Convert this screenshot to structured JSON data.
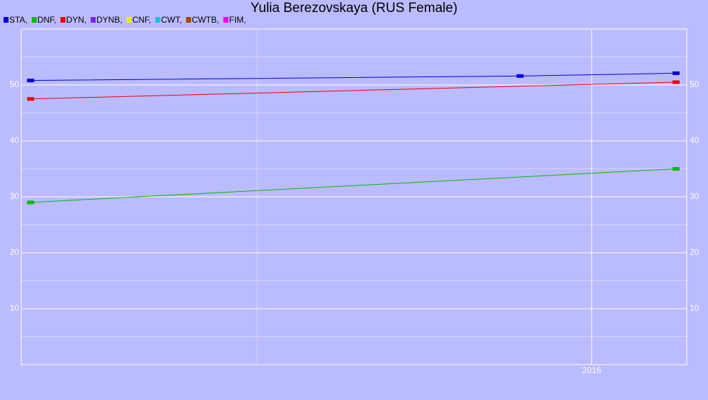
{
  "chart_data": {
    "type": "line",
    "title": "Yulia Berezovskaya (RUS Female)",
    "ylim": [
      0,
      60
    ],
    "yticks": [
      10,
      20,
      30,
      40,
      50
    ],
    "y_minor_ticks": [
      5,
      15,
      25,
      35,
      45,
      55
    ],
    "xlim": [
      2015.148,
      2016.142
    ],
    "xticks": [
      2016
    ],
    "x_minor_ticks": [
      2015.5
    ],
    "grid": true,
    "right_axis_labels": true,
    "background": "#bbbbff",
    "series": [
      {
        "name": "STA,",
        "color": "#0000dd",
        "x": [
          2015.162,
          2015.893,
          2016.126
        ],
        "values": [
          50.8,
          51.6,
          52.1
        ]
      },
      {
        "name": "DNF,",
        "color": "#00bb00",
        "x": [
          2015.162,
          2016.126
        ],
        "values": [
          29,
          35
        ]
      },
      {
        "name": "DYN,",
        "color": "#ee0000",
        "x": [
          2015.162,
          2016.126
        ],
        "values": [
          47.5,
          50.5
        ]
      },
      {
        "name": "DYNB,",
        "color": "#7722ee",
        "x": [],
        "values": []
      },
      {
        "name": "CNF,",
        "color": "#eeee00",
        "x": [],
        "values": []
      },
      {
        "name": "CWT,",
        "color": "#22bbdd",
        "x": [],
        "values": []
      },
      {
        "name": "CWTB,",
        "color": "#aa4400",
        "x": [],
        "values": []
      },
      {
        "name": "FIM,",
        "color": "#ee00ee",
        "x": [],
        "values": []
      }
    ]
  }
}
